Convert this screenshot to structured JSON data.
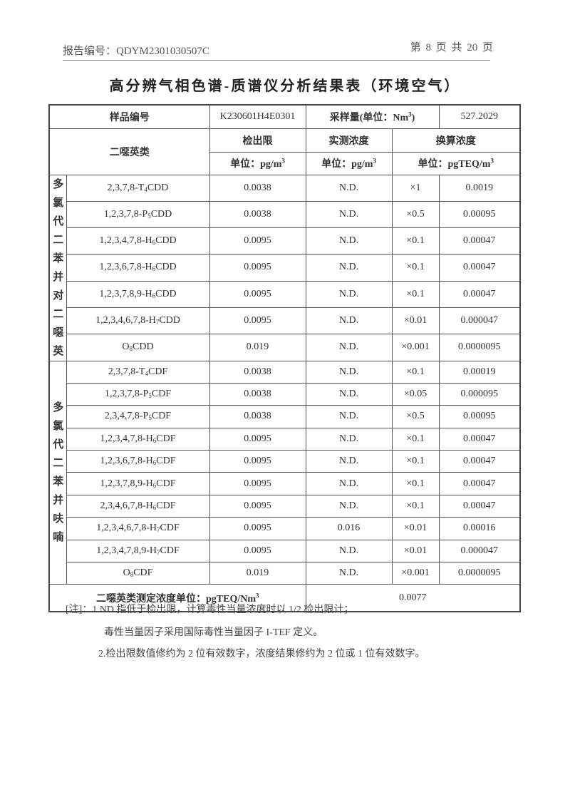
{
  "header": {
    "report_no": "报告编号：QDYM2301030507C",
    "page": "第 8 页 共 20 页"
  },
  "title": "高分辨气相色谱-质谱仪分析结果表（环境空气）",
  "table": {
    "sample_no_label": "样品编号",
    "sample_no": "K230601H4E0301",
    "volume_label": "采样量(单位：Nm",
    "volume_sup": "3",
    "volume_close": ")",
    "volume": "527.2029",
    "dioxin_label": "二噁英类",
    "col_lod": "检出限",
    "col_measured": "实测浓度",
    "col_converted": "换算浓度",
    "unit_lod": "单位：pg/m",
    "unit_measured": "单位：pg/m",
    "unit_converted": "单位：pgTEQ/m",
    "unit_sup": "3",
    "groups": [
      {
        "label": "多氯代二苯并对二噁英",
        "rows": [
          {
            "pre": "2,3,7,8-T",
            "sub": "4",
            "post": "CDD",
            "lod": "0.0038",
            "measured": "N.D.",
            "tef": "×1",
            "teq": "0.0019"
          },
          {
            "pre": "1,2,3,7,8-P",
            "sub": "5",
            "post": "CDD",
            "lod": "0.0038",
            "measured": "N.D.",
            "tef": "×0.5",
            "teq": "0.00095"
          },
          {
            "pre": "1,2,3,4,7,8-H",
            "sub": "6",
            "post": "CDD",
            "lod": "0.0095",
            "measured": "N.D.",
            "tef": "×0.1",
            "teq": "0.00047"
          },
          {
            "pre": "1,2,3,6,7,8-H",
            "sub": "6",
            "post": "CDD",
            "lod": "0.0095",
            "measured": "N.D.",
            "tef": "×0.1",
            "teq": "0.00047"
          },
          {
            "pre": "1,2,3,7,8,9-H",
            "sub": "6",
            "post": "CDD",
            "lod": "0.0095",
            "measured": "N.D.",
            "tef": "×0.1",
            "teq": "0.00047"
          },
          {
            "pre": "1,2,3,4,6,7,8-H",
            "sub": "7",
            "post": "CDD",
            "lod": "0.0095",
            "measured": "N.D.",
            "tef": "×0.01",
            "teq": "0.000047"
          },
          {
            "pre": "O",
            "sub": "8",
            "post": "CDD",
            "lod": "0.019",
            "measured": "N.D.",
            "tef": "×0.001",
            "teq": "0.0000095"
          }
        ]
      },
      {
        "label": "多氯代二苯并呋喃",
        "rows": [
          {
            "pre": "2,3,7,8-T",
            "sub": "4",
            "post": "CDF",
            "lod": "0.0038",
            "measured": "N.D.",
            "tef": "×0.1",
            "teq": "0.00019"
          },
          {
            "pre": "1,2,3,7,8-P",
            "sub": "5",
            "post": "CDF",
            "lod": "0.0038",
            "measured": "N.D.",
            "tef": "×0.05",
            "teq": "0.000095"
          },
          {
            "pre": "2,3,4,7,8-P",
            "sub": "5",
            "post": "CDF",
            "lod": "0.0038",
            "measured": "N.D.",
            "tef": "×0.5",
            "teq": "0.00095"
          },
          {
            "pre": "1,2,3,4,7,8-H",
            "sub": "6",
            "post": "CDF",
            "lod": "0.0095",
            "measured": "N.D.",
            "tef": "×0.1",
            "teq": "0.00047"
          },
          {
            "pre": "1,2,3,6,7,8-H",
            "sub": "6",
            "post": "CDF",
            "lod": "0.0095",
            "measured": "N.D.",
            "tef": "×0.1",
            "teq": "0.00047"
          },
          {
            "pre": "1,2,3,7,8,9-H",
            "sub": "6",
            "post": "CDF",
            "lod": "0.0095",
            "measured": "N.D.",
            "tef": "×0.1",
            "teq": "0.00047"
          },
          {
            "pre": "2,3,4,6,7,8-H",
            "sub": "6",
            "post": "CDF",
            "lod": "0.0095",
            "measured": "N.D.",
            "tef": "×0.1",
            "teq": "0.00047"
          },
          {
            "pre": "1,2,3,4,6,7,8-H",
            "sub": "7",
            "post": "CDF",
            "lod": "0.0095",
            "measured": "0.016",
            "tef": "×0.01",
            "teq": "0.00016"
          },
          {
            "pre": "1,2,3,4,7,8,9-H",
            "sub": "7",
            "post": "CDF",
            "lod": "0.0095",
            "measured": "N.D.",
            "tef": "×0.01",
            "teq": "0.000047"
          },
          {
            "pre": "O",
            "sub": "8",
            "post": "CDF",
            "lod": "0.019",
            "measured": "N.D.",
            "tef": "×0.001",
            "teq": "0.0000095"
          }
        ]
      }
    ],
    "total_label": "二噁英类测定浓度单位：pgTEQ/Nm",
    "total_sup": "3",
    "total_value": "0.0077"
  },
  "notes": {
    "line1": "[注]：1.ND 指低于检出限，计算毒性当量浓度时以 1/2 检出限计；",
    "line2": "毒性当量因子采用国际毒性当量因子 I-TEF 定义。",
    "line3": "2.检出限数值修约为 2 位有效数字，浓度结果修约为 2 位或 1 位有效数字。"
  }
}
